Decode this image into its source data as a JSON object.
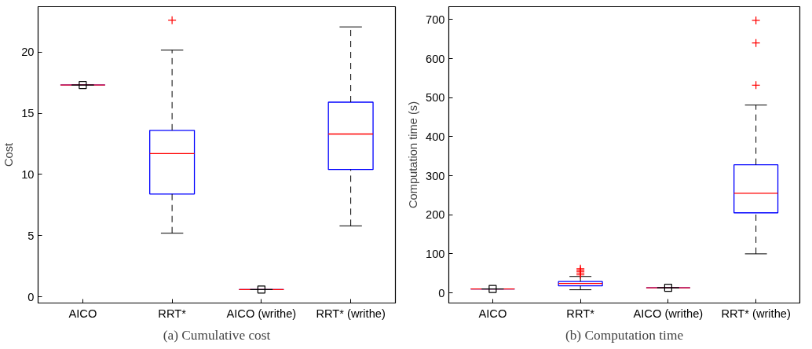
{
  "chart_data": [
    {
      "type": "box",
      "title": "(a) Cumulative cost",
      "ylabel": "Cost",
      "categories": [
        "AICO",
        "RRT*",
        "AICO (writhe)",
        "RRT* (writhe)"
      ],
      "ylim": [
        -0.5,
        23.7
      ],
      "yticks": [
        0,
        5,
        10,
        15,
        20
      ],
      "grid": false,
      "series": [
        {
          "color": "#0000ff",
          "boxes": [
            {
              "low": 17.3,
              "q1": 17.3,
              "median": 17.3,
              "q3": 17.3,
              "high": 17.3,
              "mean": 17.3
            },
            {
              "low": 5.2,
              "q1": 8.4,
              "median": 11.7,
              "q3": 13.6,
              "high": 20.15,
              "outliers": [
                22.6
              ]
            },
            {
              "low": 0.6,
              "q1": 0.6,
              "median": 0.6,
              "q3": 0.6,
              "high": 0.6,
              "mean": 0.6
            },
            {
              "low": 5.8,
              "q1": 10.4,
              "median": 13.3,
              "q3": 15.9,
              "high": 22.05
            }
          ]
        }
      ]
    },
    {
      "type": "box",
      "title": "(b) Computation time",
      "ylabel": "Computation time (s)",
      "categories": [
        "AICO",
        "RRT*",
        "AICO (writhe)",
        "RRT* (writhe)"
      ],
      "ylim": [
        -26,
        733
      ],
      "yticks": [
        0,
        100,
        200,
        300,
        400,
        500,
        600,
        700
      ],
      "grid": false,
      "series": [
        {
          "color": "#0000ff",
          "boxes": [
            {
              "low": 10,
              "q1": 10,
              "median": 10,
              "q3": 10,
              "high": 10,
              "mean": 10
            },
            {
              "low": 8,
              "q1": 18,
              "median": 24,
              "q3": 29,
              "high": 42,
              "outliers": [
                46,
                50,
                54,
                58,
                62
              ]
            },
            {
              "low": 13,
              "q1": 13,
              "median": 13,
              "q3": 13,
              "high": 13,
              "mean": 13
            },
            {
              "low": 100,
              "q1": 205,
              "median": 255,
              "q3": 328,
              "high": 481,
              "outliers": [
                532,
                640,
                698
              ]
            }
          ]
        }
      ]
    }
  ]
}
